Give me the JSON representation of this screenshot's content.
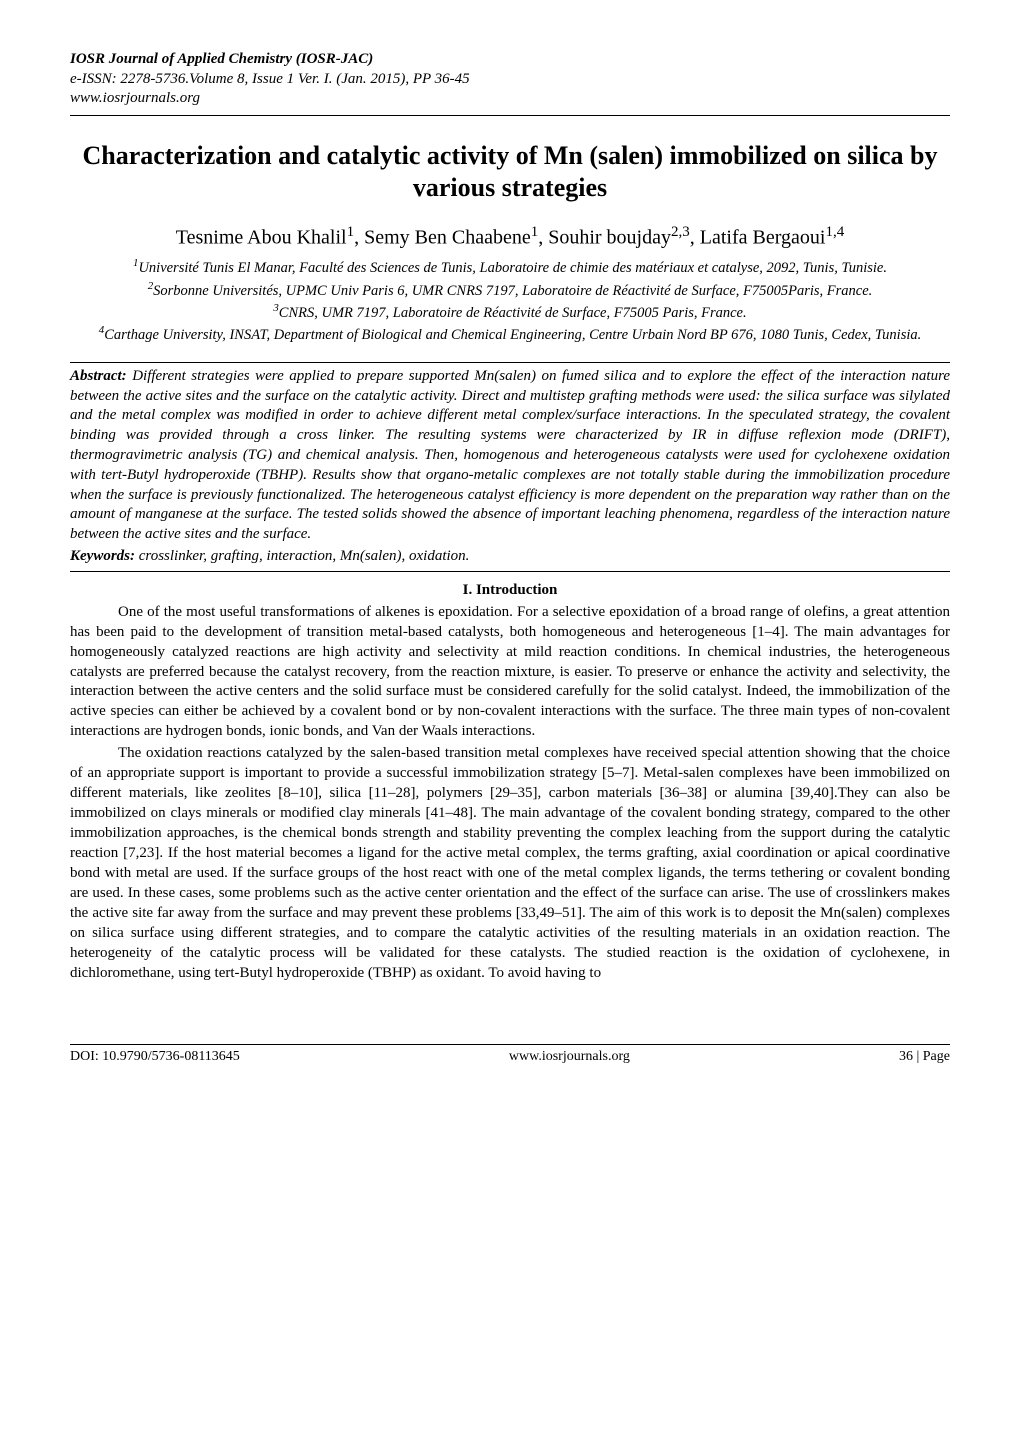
{
  "journal": {
    "name": "IOSR Journal of Applied Chemistry (IOSR-JAC)",
    "issn_line": "e-ISSN: 2278-5736.Volume 8, Issue 1 Ver. I. (Jan. 2015), PP 36-45",
    "url": "www.iosrjournals.org"
  },
  "title": "Characterization and catalytic activity of Mn (salen) immobilized on silica by various strategies",
  "authors_html": "Tesnime Abou Khalil<sup>1</sup>, Semy Ben Chaabene<sup>1</sup>, Souhir boujday<sup>2,3</sup>, Latifa Bergaoui<sup>1,4</sup>",
  "affiliations": [
    {
      "num": "1",
      "text": "Université Tunis El Manar, Faculté des Sciences de Tunis, Laboratoire de chimie des matériaux et catalyse, 2092, Tunis, Tunisie."
    },
    {
      "num": "2",
      "text": "Sorbonne Universités, UPMC Univ Paris 6, UMR CNRS 7197, Laboratoire de Réactivité de Surface, F75005Paris, France."
    },
    {
      "num": "3",
      "text": "CNRS, UMR 7197, Laboratoire de Réactivité de Surface, F75005 Paris, France."
    },
    {
      "num": "4",
      "text": "Carthage University, INSAT, Department of Biological and Chemical Engineering, Centre Urbain Nord BP 676, 1080 Tunis, Cedex, Tunisia."
    }
  ],
  "abstract": {
    "label": "Abstract:",
    "text": "Different strategies were applied to prepare supported Mn(salen) on fumed silica and to explore the effect of the interaction nature between the active sites and the surface on the catalytic activity. Direct and multistep grafting methods were used: the silica surface was silylated and the metal complex was modified in order to achieve different metal complex/surface interactions. In the speculated strategy, the covalent binding was provided through a cross linker. The resulting systems were characterized by IR in diffuse reflexion mode (DRIFT), thermogravimetric analysis (TG) and chemical analysis. Then, homogenous and heterogeneous catalysts were used for cyclohexene oxidation with tert-Butyl hydroperoxide (TBHP). Results show that organo-metalic complexes are not totally stable during the immobilization procedure when the surface is previously functionalized. The heterogeneous catalyst efficiency is more dependent on the preparation way rather than on the amount of manganese at the surface. The tested solids showed the absence of important leaching phenomena, regardless of the interaction nature between the active sites and the surface."
  },
  "keywords": {
    "label": "Keywords:",
    "text": "crosslinker, grafting, interaction, Mn(salen), oxidation."
  },
  "section_heading": "I.      Introduction",
  "paragraphs": [
    "One of the most useful transformations of alkenes is epoxidation. For a selective epoxidation of a broad range of olefins, a great attention has been paid to the development of transition metal-based catalysts, both homogeneous and heterogeneous [1–4]. The main advantages for homogeneously catalyzed reactions are high activity and selectivity at mild reaction conditions. In chemical industries, the heterogeneous catalysts are preferred because the catalyst recovery, from the reaction mixture, is easier. To preserve or enhance the activity and selectivity, the interaction between the active centers and the solid surface must be considered carefully for the solid catalyst. Indeed, the immobilization of the active species can either be achieved by a covalent bond or by non-covalent interactions with the surface. The three main types of non-covalent interactions are hydrogen bonds, ionic bonds, and Van der Waals interactions.",
    "The oxidation reactions catalyzed by the salen-based transition metal complexes have received special attention showing that the choice of an appropriate support is important to provide a successful immobilization strategy [5–7]. Metal-salen complexes have been immobilized on different materials, like zeolites [8–10], silica [11–28], polymers [29–35], carbon materials [36–38] or alumina [39,40].They can also be immobilized on clays minerals or modified clay minerals [41–48]. The main advantage of the covalent bonding strategy, compared to the other immobilization approaches, is the chemical bonds strength and stability preventing the complex leaching from the support during the catalytic reaction [7,23]. If the host material becomes a ligand for the active metal complex, the terms grafting, axial coordination or apical coordinative bond with metal are used. If the surface groups of the host react with one of the metal complex ligands, the terms tethering or covalent bonding are used. In these cases, some problems such as the active center orientation and the effect of the surface can arise. The use of crosslinkers makes the active site far away from the surface and may prevent these problems [33,49–51]. The aim of this work is to deposit the Mn(salen) complexes on silica surface using different strategies, and to compare the catalytic activities of the resulting materials in an oxidation reaction. The heterogeneity of the catalytic process will be validated for these catalysts. The studied reaction is the oxidation of cyclohexene, in dichloromethane, using tert-Butyl hydroperoxide (TBHP) as oxidant. To avoid having to"
  ],
  "footer": {
    "doi": "DOI: 10.9790/5736-08113645",
    "center": "www.iosrjournals.org",
    "page": "36 | Page"
  },
  "colors": {
    "text": "#000000",
    "background": "#ffffff",
    "rule": "#000000"
  }
}
